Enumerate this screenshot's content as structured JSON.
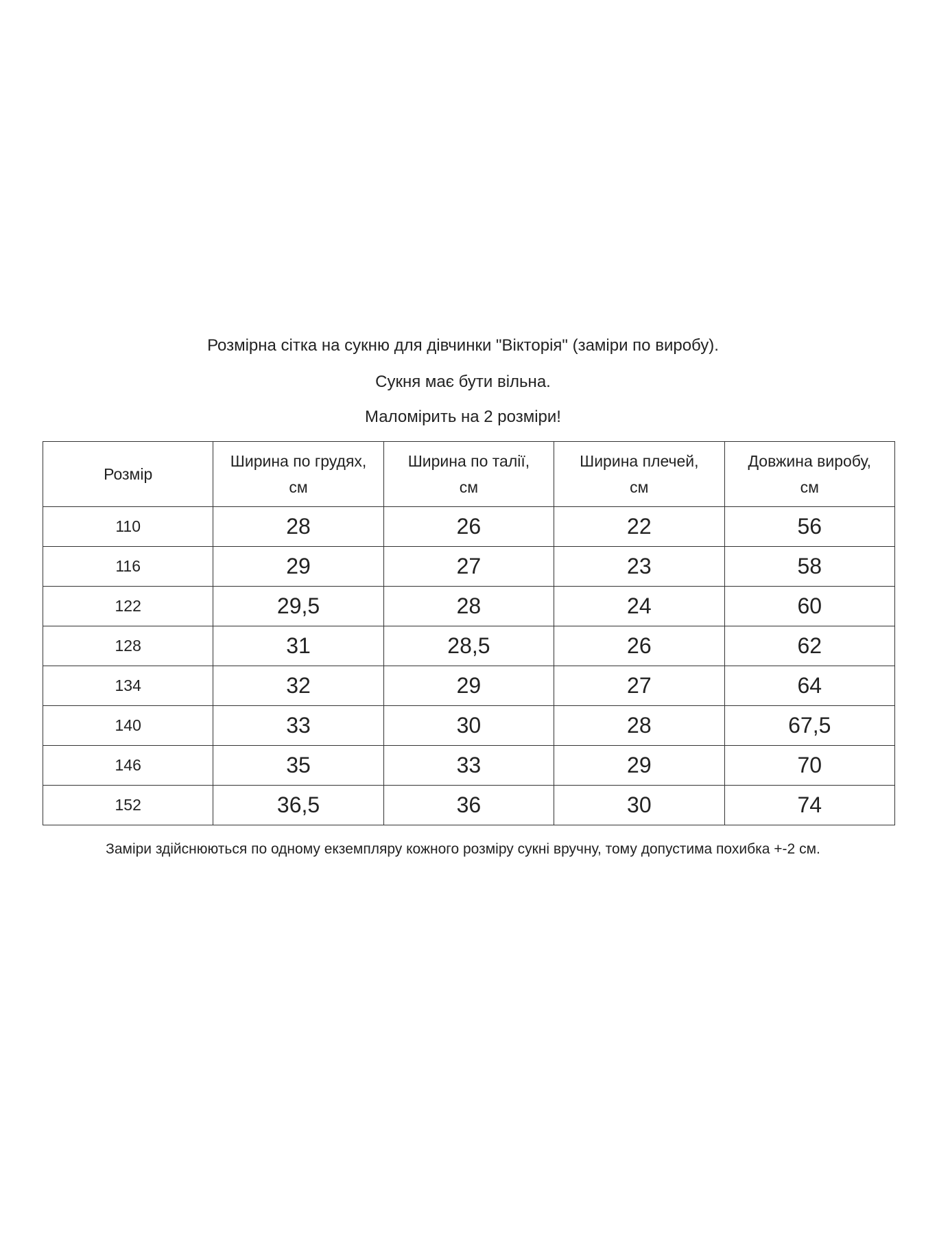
{
  "header": {
    "title": "Розмірна сітка на сукню для дівчинки \"Вікторія\" (заміри по виробу).",
    "note1": "Сукня має бути вільна.",
    "note2": "Маломірить на 2 розміри!"
  },
  "table": {
    "columns": [
      {
        "line1": "Розмір",
        "line2": ""
      },
      {
        "line1": "Ширина по грудях,",
        "line2": "см"
      },
      {
        "line1": "Ширина по талії,",
        "line2": "см"
      },
      {
        "line1": "Ширина плечей,",
        "line2": "см"
      },
      {
        "line1": "Довжина виробу,",
        "line2": "см"
      }
    ],
    "rows": [
      [
        "110",
        "28",
        "26",
        "22",
        "56"
      ],
      [
        "116",
        "29",
        "27",
        "23",
        "58"
      ],
      [
        "122",
        "29,5",
        "28",
        "24",
        "60"
      ],
      [
        "128",
        "31",
        "28,5",
        "26",
        "62"
      ],
      [
        "134",
        "32",
        "29",
        "27",
        "64"
      ],
      [
        "140",
        "33",
        "30",
        "28",
        "67,5"
      ],
      [
        "146",
        "35",
        "33",
        "29",
        "70"
      ],
      [
        "152",
        "36,5",
        "36",
        "30",
        "74"
      ]
    ]
  },
  "footer": "Заміри здійснюються  по одному екземпляру кожного розміру сукні вручну, тому допустима похибка +-2 см."
}
